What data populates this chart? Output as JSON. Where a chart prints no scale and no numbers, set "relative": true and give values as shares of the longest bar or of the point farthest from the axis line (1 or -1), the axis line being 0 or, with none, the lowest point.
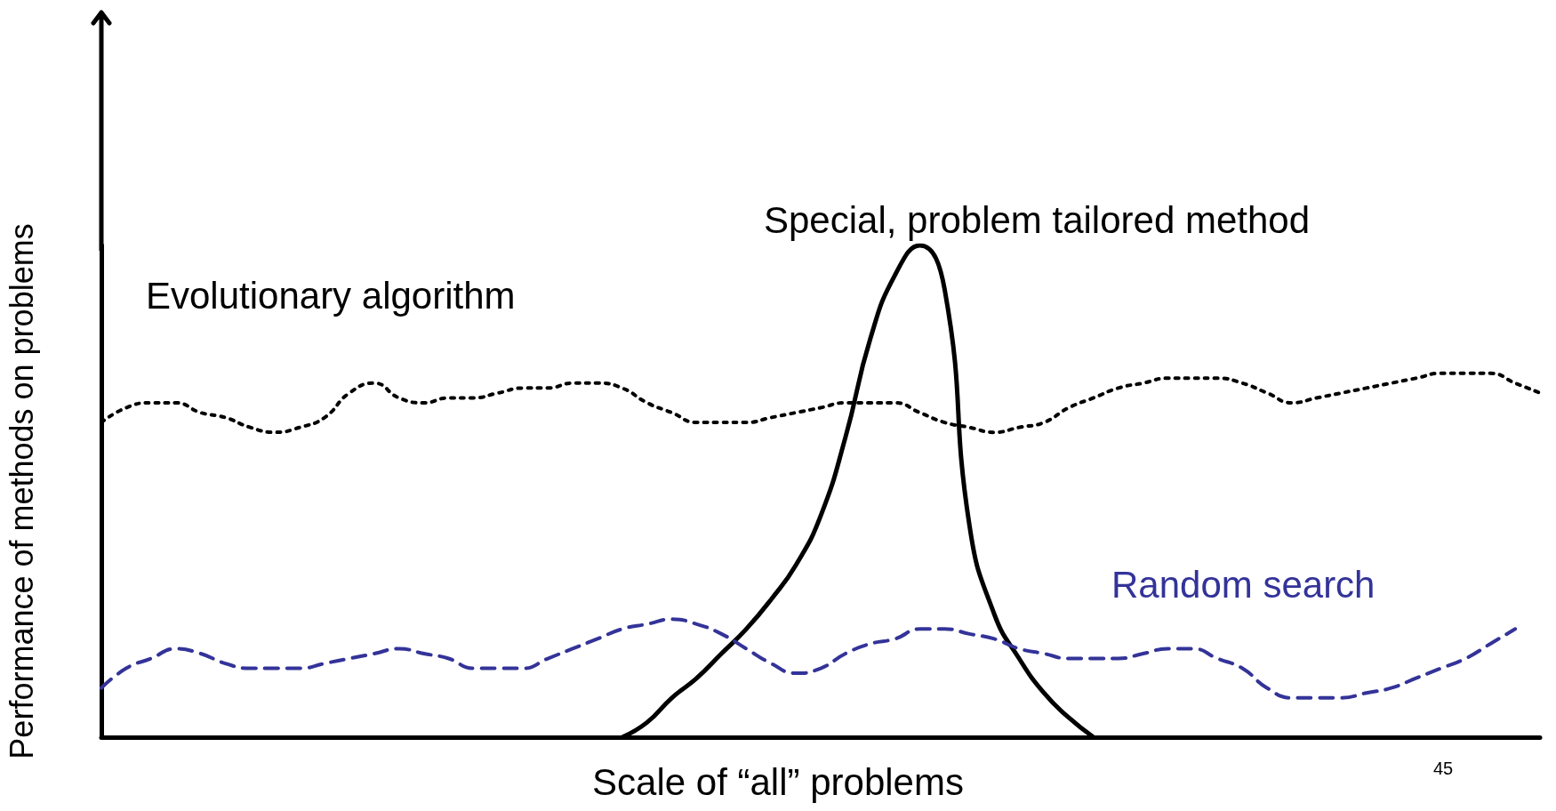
{
  "chart_data": {
    "type": "line",
    "relative": true,
    "xlabel": "Scale of “all” problems",
    "ylabel": "Performance of methods on problems",
    "annotations": [
      "45"
    ],
    "legend": false,
    "grid": false,
    "marker": "none",
    "categories": [
      null,
      null,
      null,
      null,
      null,
      null,
      null,
      null,
      null,
      null,
      null,
      null,
      null,
      null,
      null,
      null,
      null,
      null,
      null,
      null,
      null,
      null,
      null,
      null,
      null,
      null,
      null,
      null,
      null,
      null,
      null,
      null,
      null,
      null,
      null,
      null,
      null,
      null,
      null,
      null,
      null,
      null,
      null,
      null,
      null,
      null,
      null,
      null,
      null,
      null,
      null,
      null,
      null,
      null,
      null,
      null,
      null,
      null,
      null
    ],
    "series": [
      {
        "name": "Evolutionary algorithm",
        "color": "#000000",
        "line_style": "dotted",
        "values": [
          0.64,
          0.67,
          0.68,
          0.68,
          0.66,
          0.65,
          0.63,
          0.62,
          0.63,
          0.65,
          0.7,
          0.72,
          0.69,
          0.68,
          0.69,
          0.69,
          0.7,
          0.71,
          0.71,
          0.72,
          0.72,
          0.71,
          0.68,
          0.66,
          0.64,
          0.64,
          0.64,
          0.65,
          0.66,
          0.67,
          0.68,
          0.68,
          0.68,
          0.66,
          0.64,
          0.63,
          0.62,
          0.63,
          0.64,
          0.67,
          0.69,
          0.71,
          0.72,
          0.73,
          0.73,
          0.73,
          0.72,
          0.7,
          0.68,
          0.69,
          0.7,
          0.71,
          0.72,
          0.73,
          0.74,
          0.74,
          0.74,
          0.72,
          0.7
        ]
      },
      {
        "name": "Special, problem tailored method",
        "color": "#000000",
        "line_style": "solid",
        "values": [
          null,
          null,
          null,
          null,
          null,
          null,
          null,
          null,
          null,
          null,
          null,
          null,
          null,
          null,
          null,
          null,
          null,
          null,
          null,
          null,
          null,
          0,
          0.03,
          0.08,
          0.12,
          0.17,
          0.22,
          0.28,
          0.35,
          0.45,
          0.61,
          0.81,
          0.94,
          1,
          0.91,
          0.43,
          0.25,
          0.16,
          0.09,
          0.04,
          0,
          null,
          null,
          null,
          null,
          null,
          null,
          null,
          null,
          null,
          null,
          null,
          null,
          null,
          null,
          null,
          null,
          null,
          null
        ]
      },
      {
        "name": "Random search",
        "color": "#333399",
        "line_style": "dashed",
        "values": [
          0.1,
          0.14,
          0.16,
          0.18,
          0.17,
          0.15,
          0.14,
          0.14,
          0.14,
          0.15,
          0.16,
          0.17,
          0.18,
          0.17,
          0.16,
          0.14,
          0.14,
          0.14,
          0.16,
          0.18,
          0.2,
          0.22,
          0.23,
          0.24,
          0.23,
          0.21,
          0.18,
          0.15,
          0.13,
          0.14,
          0.17,
          0.19,
          0.2,
          0.22,
          0.22,
          0.21,
          0.2,
          0.18,
          0.17,
          0.16,
          0.16,
          0.16,
          0.17,
          0.18,
          0.18,
          0.16,
          0.14,
          0.1,
          0.08,
          0.08,
          0.08,
          0.09,
          0.1,
          0.12,
          0.14,
          0.16,
          0.19,
          0.22,
          null
        ]
      }
    ]
  }
}
